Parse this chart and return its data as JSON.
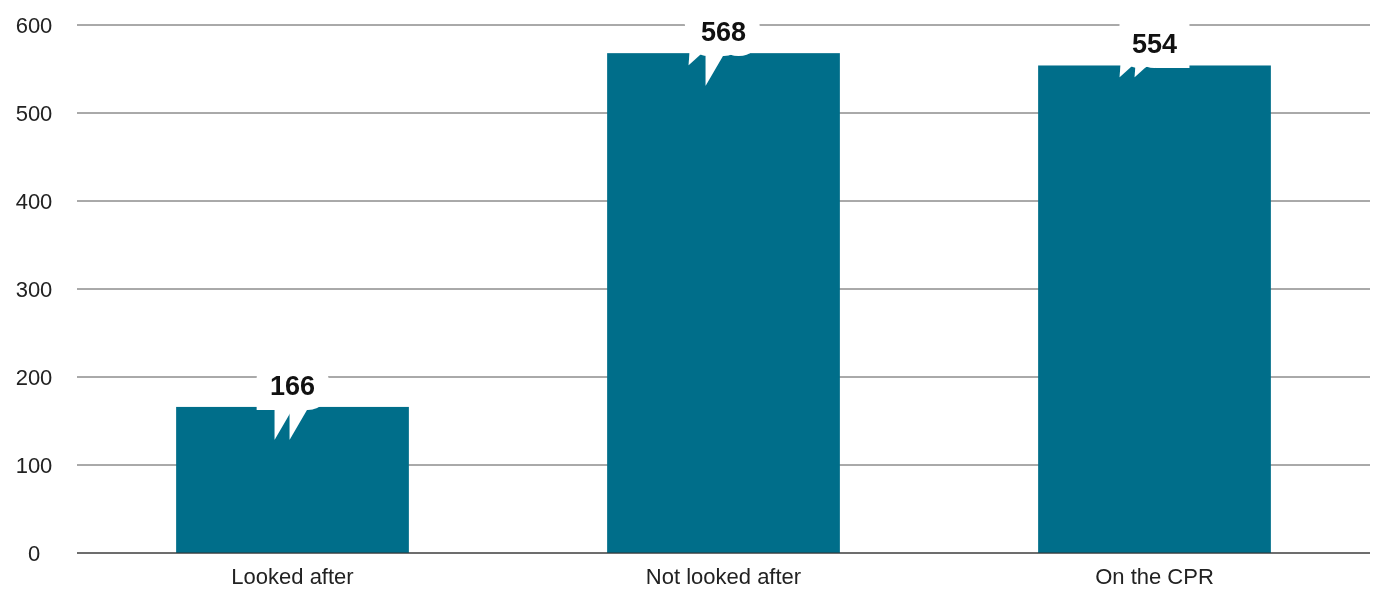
{
  "chart_data": {
    "type": "bar",
    "categories": [
      "Looked after",
      "Not looked after",
      "On the CPR"
    ],
    "values": [
      166,
      568,
      554
    ],
    "color": "#006e8a",
    "ylim": [
      0,
      600
    ],
    "yticks": [
      0,
      100,
      200,
      300,
      400,
      500,
      600
    ],
    "grid": "y",
    "data_labels": true
  }
}
